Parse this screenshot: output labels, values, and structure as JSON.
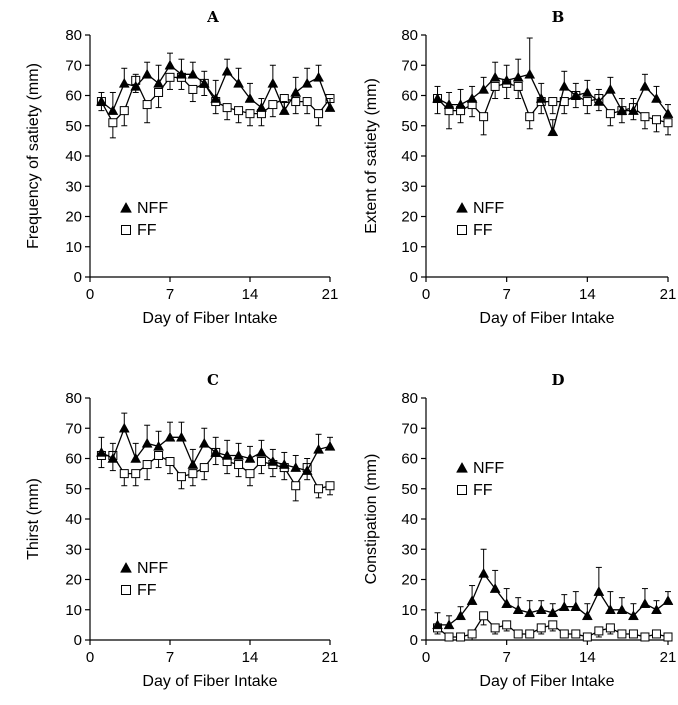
{
  "chart_data": [
    {
      "type": "line",
      "panel": "A",
      "xlabel": "Day of Fiber Intake",
      "ylabel": "Frequency of satiety (mm)",
      "xlim": [
        0,
        21
      ],
      "ylim": [
        0,
        80
      ],
      "xticks": [
        0,
        7,
        14,
        21
      ],
      "yticks": [
        0,
        10,
        20,
        30,
        40,
        50,
        60,
        70,
        80
      ],
      "legend_placement": "left-middle",
      "series": [
        {
          "name": "NFF",
          "marker": "filled-triangle",
          "x": [
            1,
            2,
            3,
            4,
            5,
            6,
            7,
            8,
            9,
            10,
            11,
            12,
            13,
            14,
            15,
            16,
            17,
            18,
            19,
            20,
            21
          ],
          "y": [
            58,
            55,
            64,
            63,
            67,
            64,
            70,
            67,
            67,
            64,
            59,
            68,
            64,
            59,
            56,
            64,
            55,
            61,
            64,
            66,
            56
          ],
          "err": [
            3,
            6,
            5,
            4,
            4,
            6,
            4,
            5,
            4,
            4,
            6,
            4,
            5,
            5,
            3,
            6,
            3,
            5,
            5,
            4,
            3
          ]
        },
        {
          "name": "FF",
          "marker": "open-square",
          "x": [
            1,
            2,
            3,
            4,
            5,
            6,
            7,
            8,
            9,
            10,
            11,
            12,
            13,
            14,
            15,
            16,
            17,
            18,
            19,
            20,
            21
          ],
          "y": [
            58,
            51,
            55,
            65,
            57,
            61,
            66,
            66,
            62,
            64,
            58,
            56,
            55,
            54,
            54,
            57,
            59,
            58,
            58,
            54,
            59
          ],
          "err": [
            3,
            5,
            5,
            4,
            6,
            5,
            4,
            4,
            4,
            4,
            4,
            4,
            4,
            4,
            4,
            4,
            4,
            4,
            4,
            4,
            4
          ]
        }
      ]
    },
    {
      "type": "line",
      "panel": "B",
      "xlabel": "Day of Fiber Intake",
      "ylabel": "Extent of satiety (mm)",
      "xlim": [
        0,
        21
      ],
      "ylim": [
        0,
        80
      ],
      "xticks": [
        0,
        7,
        14,
        21
      ],
      "yticks": [
        0,
        10,
        20,
        30,
        40,
        50,
        60,
        70,
        80
      ],
      "legend_placement": "left-middle",
      "series": [
        {
          "name": "NFF",
          "marker": "filled-triangle",
          "x": [
            1,
            2,
            3,
            4,
            5,
            6,
            7,
            8,
            9,
            10,
            11,
            12,
            13,
            14,
            15,
            16,
            17,
            18,
            19,
            20,
            21
          ],
          "y": [
            59,
            57,
            57,
            59,
            62,
            66,
            65,
            66,
            67,
            59,
            48,
            63,
            60,
            61,
            58,
            62,
            55,
            55,
            63,
            59,
            54
          ],
          "err": [
            4,
            4,
            5,
            4,
            4,
            5,
            5,
            6,
            12,
            5,
            4,
            5,
            4,
            4,
            4,
            4,
            4,
            4,
            4,
            4,
            3
          ]
        },
        {
          "name": "FF",
          "marker": "open-square",
          "x": [
            1,
            2,
            3,
            4,
            5,
            6,
            7,
            8,
            9,
            10,
            11,
            12,
            13,
            14,
            15,
            16,
            17,
            18,
            19,
            20,
            21
          ],
          "y": [
            59,
            55,
            55,
            57,
            53,
            63,
            64,
            63,
            53,
            58,
            58,
            58,
            60,
            58,
            59,
            54,
            55,
            56,
            53,
            52,
            51
          ],
          "err": [
            5,
            6,
            4,
            4,
            6,
            4,
            5,
            4,
            4,
            4,
            4,
            4,
            4,
            4,
            4,
            4,
            4,
            4,
            4,
            4,
            4
          ]
        }
      ]
    },
    {
      "type": "line",
      "panel": "C",
      "xlabel": "Day of Fiber Intake",
      "ylabel": "Thirst (mm)",
      "xlim": [
        0,
        21
      ],
      "ylim": [
        0,
        80
      ],
      "xticks": [
        0,
        7,
        14,
        21
      ],
      "yticks": [
        0,
        10,
        20,
        30,
        40,
        50,
        60,
        70,
        80
      ],
      "legend_placement": "bottom-left",
      "series": [
        {
          "name": "NFF",
          "marker": "filled-triangle",
          "x": [
            1,
            2,
            3,
            4,
            5,
            6,
            7,
            8,
            9,
            10,
            11,
            12,
            13,
            14,
            15,
            16,
            17,
            18,
            19,
            20,
            21
          ],
          "y": [
            62,
            60,
            70,
            60,
            65,
            64,
            67,
            67,
            58,
            65,
            62,
            61,
            61,
            60,
            62,
            59,
            58,
            57,
            56,
            63,
            64
          ],
          "err": [
            5,
            5,
            5,
            5,
            6,
            5,
            5,
            5,
            5,
            5,
            5,
            5,
            4,
            4,
            4,
            4,
            4,
            4,
            4,
            5,
            3
          ]
        },
        {
          "name": "FF",
          "marker": "open-square",
          "x": [
            1,
            2,
            3,
            4,
            5,
            6,
            7,
            8,
            9,
            10,
            11,
            12,
            13,
            14,
            15,
            16,
            17,
            18,
            19,
            20,
            21
          ],
          "y": [
            61,
            61,
            55,
            55,
            58,
            61,
            59,
            54,
            55,
            57,
            62,
            59,
            58,
            55,
            59,
            58,
            57,
            51,
            57,
            50,
            51
          ],
          "err": [
            4,
            5,
            4,
            4,
            5,
            4,
            4,
            4,
            4,
            4,
            4,
            4,
            4,
            4,
            4,
            4,
            4,
            5,
            4,
            3,
            3
          ]
        }
      ]
    },
    {
      "type": "line",
      "panel": "D",
      "xlabel": "Day of Fiber Intake",
      "ylabel": "Constipation (mm)",
      "xlim": [
        0,
        21
      ],
      "ylim": [
        0,
        80
      ],
      "xticks": [
        0,
        7,
        14,
        21
      ],
      "yticks": [
        0,
        10,
        20,
        30,
        40,
        50,
        60,
        70,
        80
      ],
      "legend_placement": "top-left",
      "series": [
        {
          "name": "NFF",
          "marker": "filled-triangle",
          "x": [
            1,
            2,
            3,
            4,
            5,
            6,
            7,
            8,
            9,
            10,
            11,
            12,
            13,
            14,
            15,
            16,
            17,
            18,
            19,
            20,
            21
          ],
          "y": [
            5,
            5,
            8,
            13,
            22,
            17,
            12,
            10,
            9,
            10,
            9,
            11,
            11,
            8,
            16,
            10,
            10,
            8,
            12,
            10,
            13
          ],
          "err": [
            4,
            3,
            3,
            5,
            8,
            6,
            5,
            4,
            4,
            3,
            3,
            4,
            5,
            4,
            8,
            6,
            4,
            4,
            5,
            3,
            3
          ]
        },
        {
          "name": "FF",
          "marker": "open-square",
          "x": [
            1,
            2,
            3,
            4,
            5,
            6,
            7,
            8,
            9,
            10,
            11,
            12,
            13,
            14,
            15,
            16,
            17,
            18,
            19,
            20,
            21
          ],
          "y": [
            4,
            1,
            1,
            2,
            8,
            4,
            5,
            2,
            2,
            4,
            5,
            2,
            2,
            1,
            3,
            4,
            2,
            2,
            1,
            2,
            1
          ],
          "err": [
            2,
            1,
            1,
            2,
            3,
            2,
            2,
            1,
            1,
            2,
            2,
            1,
            1,
            1,
            2,
            2,
            1,
            1,
            1,
            1,
            1
          ]
        }
      ]
    }
  ]
}
